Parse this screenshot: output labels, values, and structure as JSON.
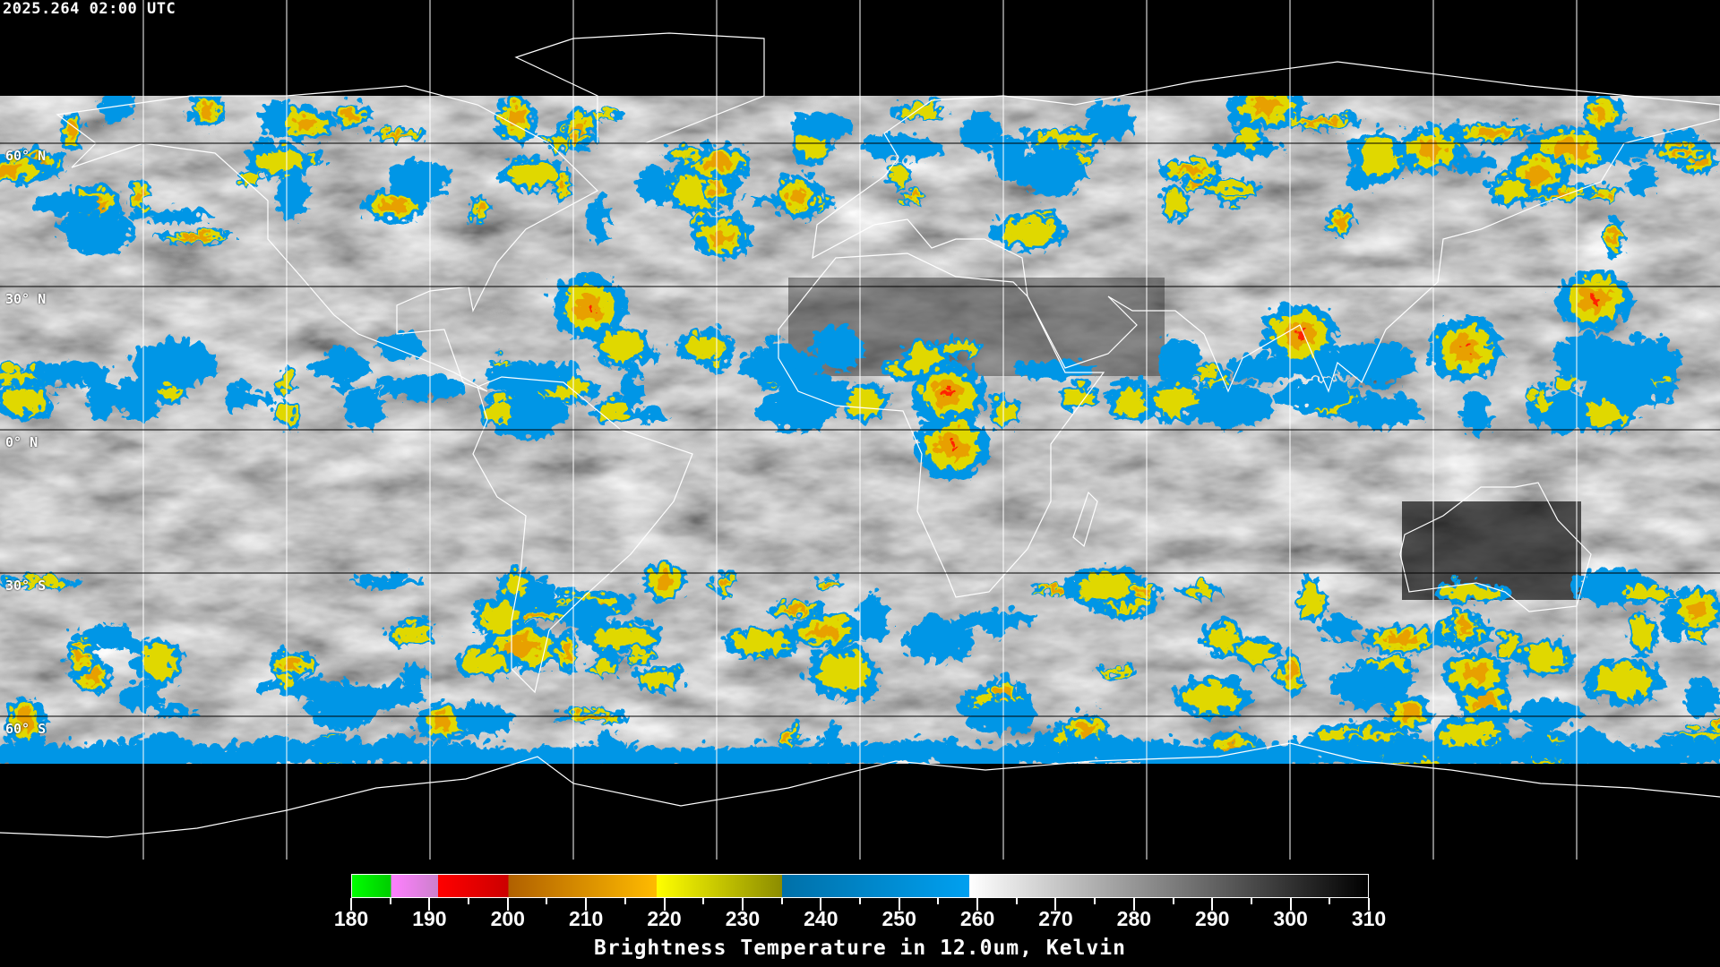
{
  "header": {
    "title": "2025.264 02:00 UTC"
  },
  "map": {
    "projection": "equirectangular",
    "graticule_spacing_deg": 30,
    "lat_labels": [
      "60° N",
      "30° N",
      "0° N",
      "30° S",
      "60° S"
    ],
    "colors": {
      "background": "#000000",
      "coastline": "#ffffff",
      "gridline": "#ffffff"
    }
  },
  "colorbar": {
    "min": 180,
    "max": 310,
    "tick_labels": [
      "180",
      "190",
      "200",
      "210",
      "220",
      "230",
      "240",
      "250",
      "260",
      "270",
      "280",
      "290",
      "300",
      "310"
    ],
    "segments": [
      {
        "from": 180,
        "to": 185,
        "start": "#00ff00",
        "end": "#00cc00"
      },
      {
        "from": 185,
        "to": 191,
        "start": "#ff80ff",
        "end": "#cc80cc"
      },
      {
        "from": 191,
        "to": 200,
        "start": "#ff0000",
        "end": "#cc0000"
      },
      {
        "from": 200,
        "to": 219,
        "start": "#b06000",
        "end": "#ffbb00"
      },
      {
        "from": 219,
        "to": 235,
        "start": "#ffff00",
        "end": "#8c8c00"
      },
      {
        "from": 235,
        "to": 259,
        "start": "#0070a8",
        "end": "#00a0f0"
      },
      {
        "from": 259,
        "to": 310,
        "start": "#ffffff",
        "end": "#000000"
      }
    ],
    "label": "Brightness Temperature in 12.0um, Kelvin"
  }
}
